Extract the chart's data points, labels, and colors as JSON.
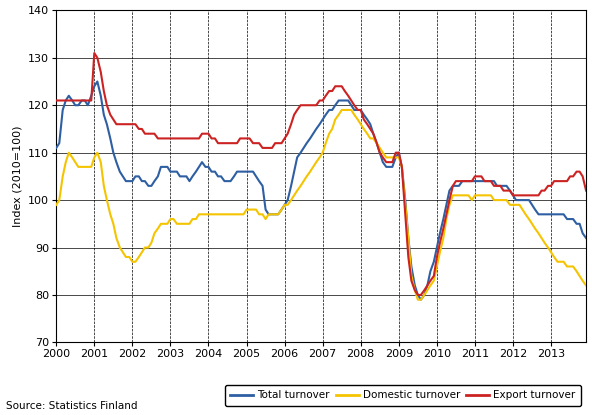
{
  "title": "",
  "ylabel": "Index (2010=100)",
  "xlabel": "",
  "source_text": "Source: Statistics Finland",
  "ylim": [
    70,
    140
  ],
  "xlim": [
    2000.0,
    2013.92
  ],
  "yticks": [
    70,
    80,
    90,
    100,
    110,
    120,
    130,
    140
  ],
  "xtick_years": [
    2000,
    2001,
    2002,
    2003,
    2004,
    2005,
    2006,
    2007,
    2008,
    2009,
    2010,
    2011,
    2012,
    2013
  ],
  "legend_labels": [
    "Total turnover",
    "Domestic turnover",
    "Export turnover"
  ],
  "colors": {
    "total": "#2E5FA3",
    "domestic": "#F5C400",
    "export": "#CC2222"
  },
  "linewidth": 1.5,
  "total_x": [
    2000.0,
    2000.08,
    2000.17,
    2000.25,
    2000.33,
    2000.42,
    2000.5,
    2000.58,
    2000.67,
    2000.75,
    2000.83,
    2000.92,
    2001.0,
    2001.08,
    2001.17,
    2001.25,
    2001.33,
    2001.42,
    2001.5,
    2001.58,
    2001.67,
    2001.75,
    2001.83,
    2001.92,
    2002.0,
    2002.08,
    2002.17,
    2002.25,
    2002.33,
    2002.42,
    2002.5,
    2002.58,
    2002.67,
    2002.75,
    2002.83,
    2002.92,
    2003.0,
    2003.08,
    2003.17,
    2003.25,
    2003.33,
    2003.42,
    2003.5,
    2003.58,
    2003.67,
    2003.75,
    2003.83,
    2003.92,
    2004.0,
    2004.08,
    2004.17,
    2004.25,
    2004.33,
    2004.42,
    2004.5,
    2004.58,
    2004.67,
    2004.75,
    2004.83,
    2004.92,
    2005.0,
    2005.08,
    2005.17,
    2005.25,
    2005.33,
    2005.42,
    2005.5,
    2005.58,
    2005.67,
    2005.75,
    2005.83,
    2005.92,
    2006.0,
    2006.08,
    2006.17,
    2006.25,
    2006.33,
    2006.42,
    2006.5,
    2006.58,
    2006.67,
    2006.75,
    2006.83,
    2006.92,
    2007.0,
    2007.08,
    2007.17,
    2007.25,
    2007.33,
    2007.42,
    2007.5,
    2007.58,
    2007.67,
    2007.75,
    2007.83,
    2007.92,
    2008.0,
    2008.08,
    2008.17,
    2008.25,
    2008.33,
    2008.42,
    2008.5,
    2008.58,
    2008.67,
    2008.75,
    2008.83,
    2008.92,
    2009.0,
    2009.08,
    2009.17,
    2009.25,
    2009.33,
    2009.42,
    2009.5,
    2009.58,
    2009.67,
    2009.75,
    2009.83,
    2009.92,
    2010.0,
    2010.08,
    2010.17,
    2010.25,
    2010.33,
    2010.42,
    2010.5,
    2010.58,
    2010.67,
    2010.75,
    2010.83,
    2010.92,
    2011.0,
    2011.08,
    2011.17,
    2011.25,
    2011.33,
    2011.42,
    2011.5,
    2011.58,
    2011.67,
    2011.75,
    2011.83,
    2011.92,
    2012.0,
    2012.08,
    2012.17,
    2012.25,
    2012.33,
    2012.42,
    2012.5,
    2012.58,
    2012.67,
    2012.75,
    2012.83,
    2012.92,
    2013.0,
    2013.08,
    2013.17,
    2013.25,
    2013.33,
    2013.42,
    2013.5,
    2013.58,
    2013.67,
    2013.75,
    2013.83,
    2013.92
  ],
  "total_y": [
    111,
    112,
    119,
    121,
    122,
    121,
    120,
    120,
    121,
    121,
    120,
    122,
    124,
    125,
    122,
    118,
    116,
    113,
    110,
    108,
    106,
    105,
    104,
    104,
    104,
    105,
    105,
    104,
    104,
    103,
    103,
    104,
    105,
    107,
    107,
    107,
    106,
    106,
    106,
    105,
    105,
    105,
    104,
    105,
    106,
    107,
    108,
    107,
    107,
    106,
    106,
    105,
    105,
    104,
    104,
    104,
    105,
    106,
    106,
    106,
    106,
    106,
    106,
    105,
    104,
    103,
    98,
    97,
    97,
    97,
    97,
    98,
    99,
    100,
    103,
    106,
    109,
    110,
    111,
    112,
    113,
    114,
    115,
    116,
    117,
    118,
    119,
    119,
    120,
    121,
    121,
    121,
    121,
    120,
    119,
    119,
    119,
    118,
    117,
    116,
    114,
    112,
    110,
    108,
    107,
    107,
    107,
    109,
    110,
    107,
    100,
    92,
    86,
    82,
    80,
    79,
    80,
    82,
    85,
    87,
    90,
    93,
    96,
    99,
    102,
    103,
    103,
    103,
    104,
    104,
    104,
    104,
    104,
    104,
    104,
    104,
    104,
    104,
    104,
    103,
    103,
    103,
    103,
    102,
    101,
    100,
    100,
    100,
    100,
    100,
    99,
    98,
    97,
    97,
    97,
    97,
    97,
    97,
    97,
    97,
    97,
    96,
    96,
    96,
    95,
    95,
    93,
    92
  ],
  "domestic_x": [
    2000.0,
    2000.08,
    2000.17,
    2000.25,
    2000.33,
    2000.42,
    2000.5,
    2000.58,
    2000.67,
    2000.75,
    2000.83,
    2000.92,
    2001.0,
    2001.08,
    2001.17,
    2001.25,
    2001.33,
    2001.42,
    2001.5,
    2001.58,
    2001.67,
    2001.75,
    2001.83,
    2001.92,
    2002.0,
    2002.08,
    2002.17,
    2002.25,
    2002.33,
    2002.42,
    2002.5,
    2002.58,
    2002.67,
    2002.75,
    2002.83,
    2002.92,
    2003.0,
    2003.08,
    2003.17,
    2003.25,
    2003.33,
    2003.42,
    2003.5,
    2003.58,
    2003.67,
    2003.75,
    2003.83,
    2003.92,
    2004.0,
    2004.08,
    2004.17,
    2004.25,
    2004.33,
    2004.42,
    2004.5,
    2004.58,
    2004.67,
    2004.75,
    2004.83,
    2004.92,
    2005.0,
    2005.08,
    2005.17,
    2005.25,
    2005.33,
    2005.42,
    2005.5,
    2005.58,
    2005.67,
    2005.75,
    2005.83,
    2005.92,
    2006.0,
    2006.08,
    2006.17,
    2006.25,
    2006.33,
    2006.42,
    2006.5,
    2006.58,
    2006.67,
    2006.75,
    2006.83,
    2006.92,
    2007.0,
    2007.08,
    2007.17,
    2007.25,
    2007.33,
    2007.42,
    2007.5,
    2007.58,
    2007.67,
    2007.75,
    2007.83,
    2007.92,
    2008.0,
    2008.08,
    2008.17,
    2008.25,
    2008.33,
    2008.42,
    2008.5,
    2008.58,
    2008.67,
    2008.75,
    2008.83,
    2008.92,
    2009.0,
    2009.08,
    2009.17,
    2009.25,
    2009.33,
    2009.42,
    2009.5,
    2009.58,
    2009.67,
    2009.75,
    2009.83,
    2009.92,
    2010.0,
    2010.08,
    2010.17,
    2010.25,
    2010.33,
    2010.42,
    2010.5,
    2010.58,
    2010.67,
    2010.75,
    2010.83,
    2010.92,
    2011.0,
    2011.08,
    2011.17,
    2011.25,
    2011.33,
    2011.42,
    2011.5,
    2011.58,
    2011.67,
    2011.75,
    2011.83,
    2011.92,
    2012.0,
    2012.08,
    2012.17,
    2012.25,
    2012.33,
    2012.42,
    2012.5,
    2012.58,
    2012.67,
    2012.75,
    2012.83,
    2012.92,
    2013.0,
    2013.08,
    2013.17,
    2013.25,
    2013.33,
    2013.42,
    2013.5,
    2013.58,
    2013.67,
    2013.75,
    2013.83,
    2013.92
  ],
  "domestic_y": [
    99,
    100,
    105,
    108,
    110,
    109,
    108,
    107,
    107,
    107,
    107,
    107,
    109,
    110,
    108,
    103,
    100,
    97,
    95,
    92,
    90,
    89,
    88,
    88,
    87,
    87,
    88,
    89,
    90,
    90,
    91,
    93,
    94,
    95,
    95,
    95,
    96,
    96,
    95,
    95,
    95,
    95,
    95,
    96,
    96,
    97,
    97,
    97,
    97,
    97,
    97,
    97,
    97,
    97,
    97,
    97,
    97,
    97,
    97,
    97,
    98,
    98,
    98,
    98,
    97,
    97,
    96,
    97,
    97,
    97,
    97,
    98,
    99,
    99,
    100,
    101,
    102,
    103,
    104,
    105,
    106,
    107,
    108,
    109,
    110,
    112,
    114,
    115,
    117,
    118,
    119,
    119,
    119,
    119,
    118,
    117,
    116,
    115,
    114,
    113,
    113,
    112,
    111,
    110,
    109,
    109,
    109,
    109,
    109,
    107,
    99,
    92,
    84,
    81,
    79,
    79,
    80,
    81,
    82,
    83,
    86,
    89,
    92,
    96,
    99,
    101,
    101,
    101,
    101,
    101,
    101,
    100,
    101,
    101,
    101,
    101,
    101,
    101,
    100,
    100,
    100,
    100,
    100,
    99,
    99,
    99,
    99,
    98,
    97,
    96,
    95,
    94,
    93,
    92,
    91,
    90,
    89,
    88,
    87,
    87,
    87,
    86,
    86,
    86,
    85,
    84,
    83,
    82
  ],
  "export_x": [
    2000.0,
    2000.08,
    2000.17,
    2000.25,
    2000.33,
    2000.42,
    2000.5,
    2000.58,
    2000.67,
    2000.75,
    2000.83,
    2000.92,
    2001.0,
    2001.08,
    2001.17,
    2001.25,
    2001.33,
    2001.42,
    2001.5,
    2001.58,
    2001.67,
    2001.75,
    2001.83,
    2001.92,
    2002.0,
    2002.08,
    2002.17,
    2002.25,
    2002.33,
    2002.42,
    2002.5,
    2002.58,
    2002.67,
    2002.75,
    2002.83,
    2002.92,
    2003.0,
    2003.08,
    2003.17,
    2003.25,
    2003.33,
    2003.42,
    2003.5,
    2003.58,
    2003.67,
    2003.75,
    2003.83,
    2003.92,
    2004.0,
    2004.08,
    2004.17,
    2004.25,
    2004.33,
    2004.42,
    2004.5,
    2004.58,
    2004.67,
    2004.75,
    2004.83,
    2004.92,
    2005.0,
    2005.08,
    2005.17,
    2005.25,
    2005.33,
    2005.42,
    2005.5,
    2005.58,
    2005.67,
    2005.75,
    2005.83,
    2005.92,
    2006.0,
    2006.08,
    2006.17,
    2006.25,
    2006.33,
    2006.42,
    2006.5,
    2006.58,
    2006.67,
    2006.75,
    2006.83,
    2006.92,
    2007.0,
    2007.08,
    2007.17,
    2007.25,
    2007.33,
    2007.42,
    2007.5,
    2007.58,
    2007.67,
    2007.75,
    2007.83,
    2007.92,
    2008.0,
    2008.08,
    2008.17,
    2008.25,
    2008.33,
    2008.42,
    2008.5,
    2008.58,
    2008.67,
    2008.75,
    2008.83,
    2008.92,
    2009.0,
    2009.08,
    2009.17,
    2009.25,
    2009.33,
    2009.42,
    2009.5,
    2009.58,
    2009.67,
    2009.75,
    2009.83,
    2009.92,
    2010.0,
    2010.08,
    2010.17,
    2010.25,
    2010.33,
    2010.42,
    2010.5,
    2010.58,
    2010.67,
    2010.75,
    2010.83,
    2010.92,
    2011.0,
    2011.08,
    2011.17,
    2011.25,
    2011.33,
    2011.42,
    2011.5,
    2011.58,
    2011.67,
    2011.75,
    2011.83,
    2011.92,
    2012.0,
    2012.08,
    2012.17,
    2012.25,
    2012.33,
    2012.42,
    2012.5,
    2012.58,
    2012.67,
    2012.75,
    2012.83,
    2012.92,
    2013.0,
    2013.08,
    2013.17,
    2013.25,
    2013.33,
    2013.42,
    2013.5,
    2013.58,
    2013.67,
    2013.75,
    2013.83,
    2013.92
  ],
  "export_y": [
    121,
    121,
    121,
    121,
    121,
    121,
    121,
    121,
    121,
    121,
    121,
    121,
    131,
    130,
    127,
    123,
    120,
    118,
    117,
    116,
    116,
    116,
    116,
    116,
    116,
    116,
    115,
    115,
    114,
    114,
    114,
    114,
    113,
    113,
    113,
    113,
    113,
    113,
    113,
    113,
    113,
    113,
    113,
    113,
    113,
    113,
    114,
    114,
    114,
    113,
    113,
    112,
    112,
    112,
    112,
    112,
    112,
    112,
    113,
    113,
    113,
    113,
    112,
    112,
    112,
    111,
    111,
    111,
    111,
    112,
    112,
    112,
    113,
    114,
    116,
    118,
    119,
    120,
    120,
    120,
    120,
    120,
    120,
    121,
    121,
    122,
    123,
    123,
    124,
    124,
    124,
    123,
    122,
    121,
    120,
    119,
    119,
    117,
    116,
    115,
    114,
    112,
    110,
    109,
    108,
    108,
    108,
    110,
    110,
    107,
    97,
    88,
    83,
    81,
    80,
    80,
    81,
    82,
    83,
    84,
    88,
    91,
    94,
    97,
    100,
    103,
    104,
    104,
    104,
    104,
    104,
    104,
    105,
    105,
    105,
    104,
    104,
    104,
    103,
    103,
    103,
    102,
    102,
    102,
    101,
    101,
    101,
    101,
    101,
    101,
    101,
    101,
    101,
    102,
    102,
    103,
    103,
    104,
    104,
    104,
    104,
    104,
    105,
    105,
    106,
    106,
    105,
    102
  ]
}
